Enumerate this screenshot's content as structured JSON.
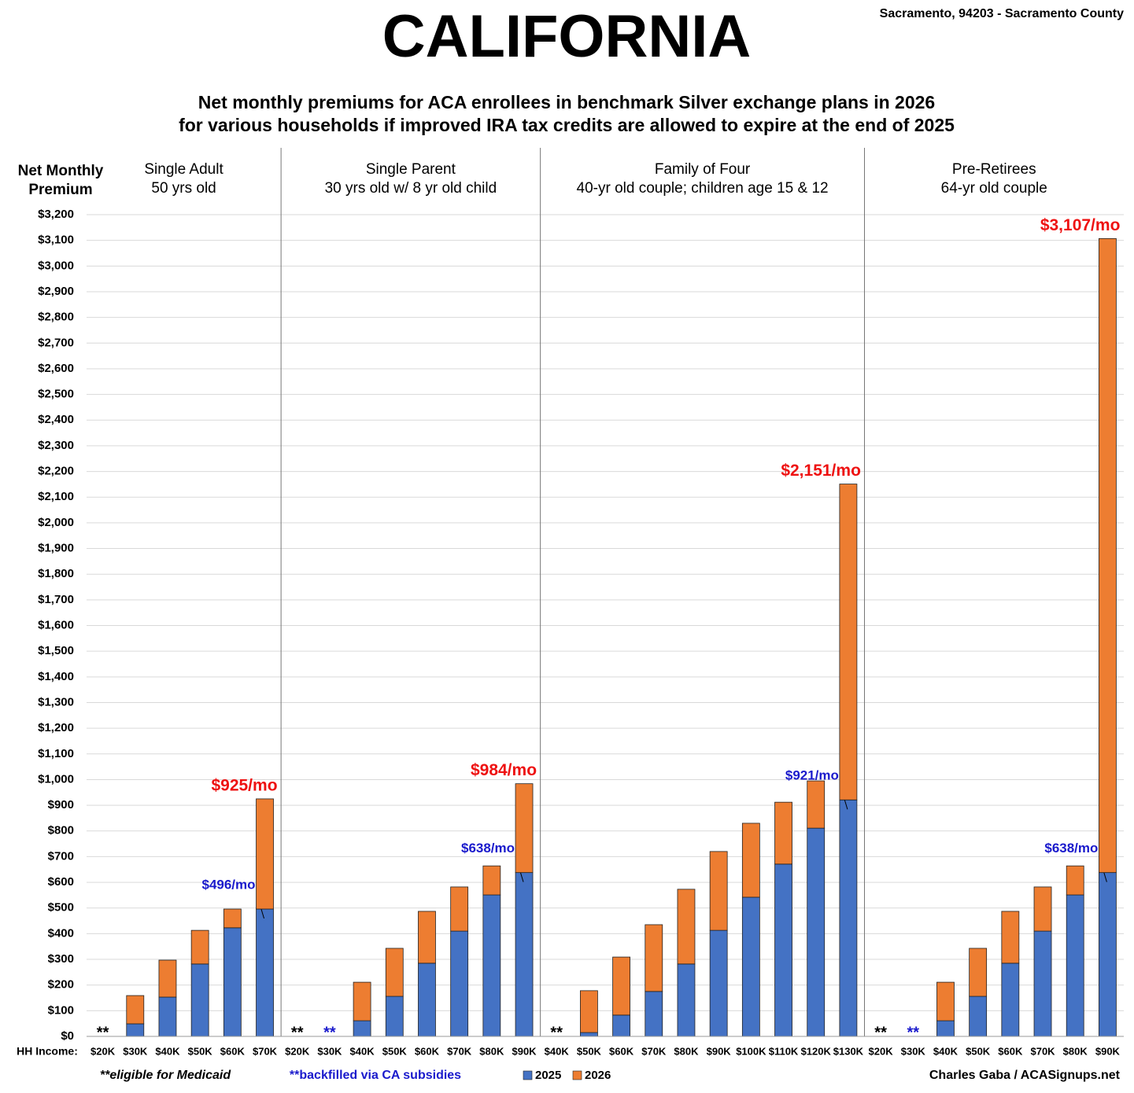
{
  "chart_data": {
    "type": "stacked_bar",
    "title": "CALIFORNIA",
    "location": "Sacramento, 94203 - Sacramento County",
    "subtitle": [
      "Net monthly premiums for ACA enrollees in benchmark Silver exchange plans in 2026",
      "for various households if improved IRA tax credits are allowed to expire at the end of 2025"
    ],
    "y_label": [
      "Net Monthly",
      "Premium"
    ],
    "x_label": "HH Income:",
    "groups": [
      {
        "title": "Single Adult",
        "subtitle": "50 yrs old",
        "size": 6
      },
      {
        "title": "Single Parent",
        "subtitle": "30 yrs old w/ 8 yr old child",
        "size": 8
      },
      {
        "title": "Family of Four",
        "subtitle": "40-yr old couple; children age 15 & 12",
        "size": 10
      },
      {
        "title": "Pre-Retirees",
        "subtitle": "64-yr old couple",
        "size": 8
      }
    ],
    "categories": [
      "$20K",
      "$30K",
      "$40K",
      "$50K",
      "$60K",
      "$70K",
      "$20K",
      "$30K",
      "$40K",
      "$50K",
      "$60K",
      "$70K",
      "$80K",
      "$90K",
      "$40K",
      "$50K",
      "$60K",
      "$70K",
      "$80K",
      "$90K",
      "$100K",
      "$110K",
      "$120K",
      "$130K",
      "$20K",
      "$30K",
      "$40K",
      "$50K",
      "$60K",
      "$70K",
      "$80K",
      "$90K"
    ],
    "series": [
      {
        "name": "2025",
        "color": "#4472c4",
        "values": [
          null,
          49,
          153,
          282,
          423,
          496,
          null,
          null,
          61,
          156,
          285,
          410,
          551,
          638,
          null,
          15,
          83,
          175,
          282,
          413,
          542,
          671,
          811,
          921,
          null,
          null,
          61,
          156,
          285,
          410,
          551,
          638
        ],
        "value_labels": [
          null,
          null,
          null,
          null,
          null,
          "$496/mo",
          null,
          null,
          null,
          null,
          null,
          null,
          null,
          "$638/mo",
          null,
          null,
          null,
          null,
          null,
          null,
          null,
          null,
          null,
          "$921/mo",
          null,
          null,
          null,
          null,
          null,
          null,
          null,
          "$638/mo"
        ]
      },
      {
        "name": "2026",
        "color": "#ed7d31",
        "values": [
          null,
          110,
          144,
          131,
          73,
          429,
          null,
          null,
          150,
          187,
          202,
          172,
          113,
          346,
          null,
          163,
          226,
          260,
          291,
          307,
          288,
          241,
          184,
          1230,
          null,
          null,
          150,
          187,
          202,
          172,
          113,
          2469
        ]
      }
    ],
    "total_labels": [
      null,
      null,
      null,
      null,
      null,
      "$925/mo",
      null,
      null,
      null,
      null,
      null,
      null,
      null,
      "$984/mo",
      null,
      null,
      null,
      null,
      null,
      null,
      null,
      null,
      null,
      "$2,151/mo",
      null,
      null,
      null,
      null,
      null,
      null,
      null,
      "$3,107/mo"
    ],
    "note_marks": [
      "**",
      null,
      null,
      null,
      null,
      null,
      "**",
      "**",
      null,
      null,
      null,
      null,
      null,
      null,
      "**",
      null,
      null,
      null,
      null,
      null,
      null,
      null,
      null,
      null,
      "**",
      "**",
      null,
      null,
      null,
      null,
      null,
      null
    ],
    "note_mark_colors": [
      "#000000",
      null,
      null,
      null,
      null,
      null,
      "#000000",
      "#1a1acc",
      null,
      null,
      null,
      null,
      null,
      null,
      "#000000",
      null,
      null,
      null,
      null,
      null,
      null,
      null,
      null,
      null,
      "#000000",
      "#1a1acc",
      null,
      null,
      null,
      null,
      null,
      null
    ],
    "footnotes": [
      {
        "text": "**eligible for Medicaid",
        "color": "#000000"
      },
      {
        "text": "**backfilled via CA subsidies",
        "color": "#1a1acc"
      }
    ],
    "credit": "Charles Gaba / ACASignups.net",
    "total_label_color": "#ee1111",
    "ylim": [
      0,
      3200
    ],
    "yticks": [
      {
        "value": 0,
        "label": "$0"
      },
      {
        "value": 100,
        "label": "$100"
      },
      {
        "value": 200,
        "label": "$200"
      },
      {
        "value": 300,
        "label": "$300"
      },
      {
        "value": 400,
        "label": "$400"
      },
      {
        "value": 500,
        "label": "$500"
      },
      {
        "value": 600,
        "label": "$600"
      },
      {
        "value": 700,
        "label": "$700"
      },
      {
        "value": 800,
        "label": "$800"
      },
      {
        "value": 900,
        "label": "$900"
      },
      {
        "value": 1000,
        "label": "$1,000"
      },
      {
        "value": 1100,
        "label": "$1,100"
      },
      {
        "value": 1200,
        "label": "$1,200"
      },
      {
        "value": 1300,
        "label": "$1,300"
      },
      {
        "value": 1400,
        "label": "$1,400"
      },
      {
        "value": 1500,
        "label": "$1,500"
      },
      {
        "value": 1600,
        "label": "$1,600"
      },
      {
        "value": 1700,
        "label": "$1,700"
      },
      {
        "value": 1800,
        "label": "$1,800"
      },
      {
        "value": 1900,
        "label": "$1,900"
      },
      {
        "value": 2000,
        "label": "$2,000"
      },
      {
        "value": 2100,
        "label": "$2,100"
      },
      {
        "value": 2200,
        "label": "$2,200"
      },
      {
        "value": 2300,
        "label": "$2,300"
      },
      {
        "value": 2400,
        "label": "$2,400"
      },
      {
        "value": 2500,
        "label": "$2,500"
      },
      {
        "value": 2600,
        "label": "$2,600"
      },
      {
        "value": 2700,
        "label": "$2,700"
      },
      {
        "value": 2800,
        "label": "$2,800"
      },
      {
        "value": 2900,
        "label": "$2,900"
      },
      {
        "value": 3000,
        "label": "$3,000"
      },
      {
        "value": 3100,
        "label": "$3,100"
      },
      {
        "value": 3200,
        "label": "$3,200"
      }
    ],
    "grid": true
  }
}
